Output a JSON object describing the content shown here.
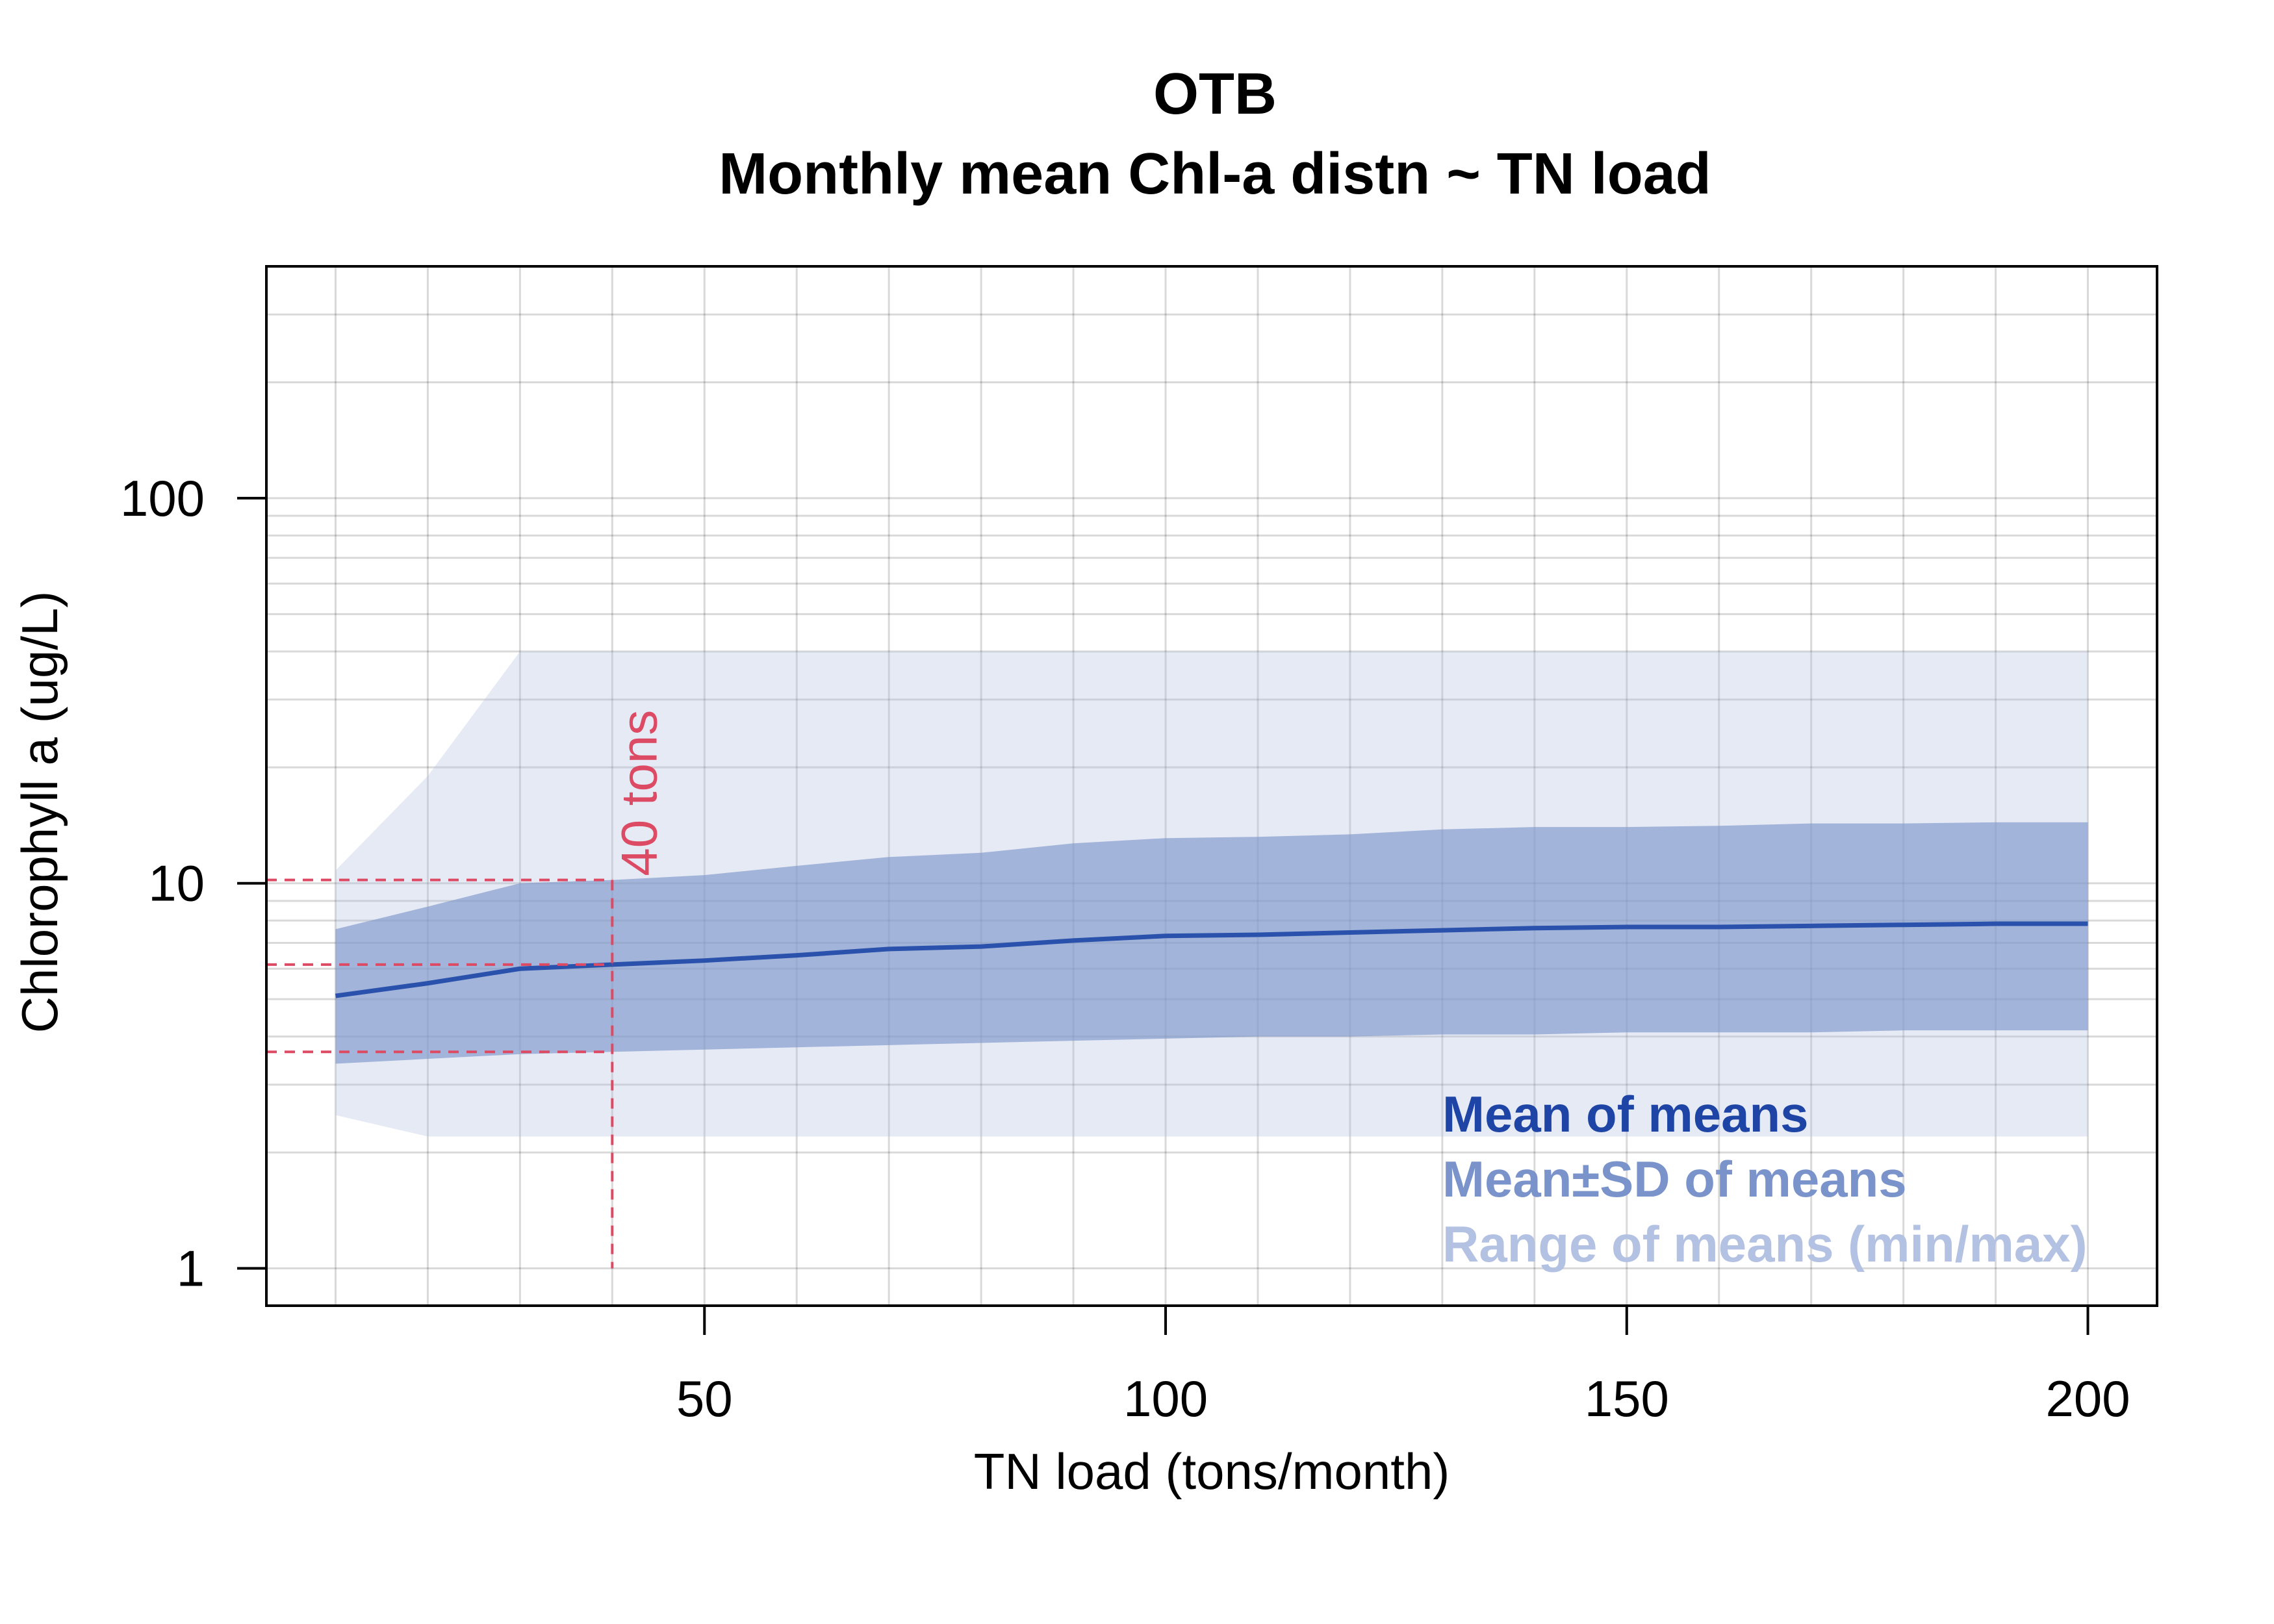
{
  "chart_data": {
    "type": "line",
    "title": "OTB",
    "subtitle": "Monthly mean Chl-a distn ~ TN load",
    "xlabel": "TN load (tons/month)",
    "ylabel": "Chlorophyll a (ug/L)",
    "xlim": [
      2.5,
      207.5
    ],
    "ylim": [
      0.8,
      400
    ],
    "y_scale": "log",
    "x_ticks": [
      50,
      100,
      150,
      200
    ],
    "x_tick_labels": [
      "50",
      "100",
      "150",
      "200"
    ],
    "y_ticks": [
      1,
      10,
      100
    ],
    "y_tick_labels": [
      "1",
      "10",
      "100"
    ],
    "grid": true,
    "legend_position": "bottom-right",
    "x": [
      10,
      20,
      30,
      40,
      50,
      60,
      70,
      80,
      90,
      100,
      110,
      120,
      130,
      140,
      150,
      160,
      170,
      180,
      190,
      200
    ],
    "series": [
      {
        "name": "Mean of means",
        "kind": "line",
        "color": "#2A51AB",
        "values": [
          5.1,
          5.5,
          6.0,
          6.15,
          6.3,
          6.5,
          6.75,
          6.85,
          7.1,
          7.3,
          7.35,
          7.45,
          7.55,
          7.65,
          7.7,
          7.7,
          7.75,
          7.8,
          7.85,
          7.85
        ]
      },
      {
        "name": "Mean±SD of means",
        "kind": "band",
        "color": "#7E96C9",
        "lower": [
          3.4,
          3.5,
          3.6,
          3.65,
          3.7,
          3.75,
          3.8,
          3.85,
          3.9,
          3.95,
          4.0,
          4.0,
          4.05,
          4.05,
          4.1,
          4.1,
          4.1,
          4.15,
          4.15,
          4.15
        ],
        "upper": [
          7.6,
          8.7,
          10.0,
          10.2,
          10.5,
          11.1,
          11.7,
          12.0,
          12.7,
          13.1,
          13.2,
          13.4,
          13.8,
          14.0,
          14.0,
          14.1,
          14.3,
          14.3,
          14.4,
          14.4
        ]
      },
      {
        "name": "Range of means (min/max)",
        "kind": "band",
        "color": "#B3C0E0",
        "lower": [
          2.5,
          2.2,
          2.2,
          2.2,
          2.2,
          2.2,
          2.2,
          2.2,
          2.2,
          2.2,
          2.2,
          2.2,
          2.2,
          2.2,
          2.2,
          2.2,
          2.2,
          2.2,
          2.2,
          2.2
        ],
        "upper": [
          10.8,
          19.0,
          40.0,
          40.0,
          40.0,
          40.0,
          40.0,
          40.0,
          40.0,
          40.0,
          40.0,
          40.0,
          40.0,
          40.0,
          40.0,
          40.0,
          40.0,
          40.0,
          40.0,
          40.0
        ]
      }
    ],
    "annotations": [
      {
        "label": "40 tons",
        "x": 40,
        "color": "#DC4A63",
        "y_levels": [
          10.2,
          6.15,
          3.65
        ]
      }
    ]
  }
}
